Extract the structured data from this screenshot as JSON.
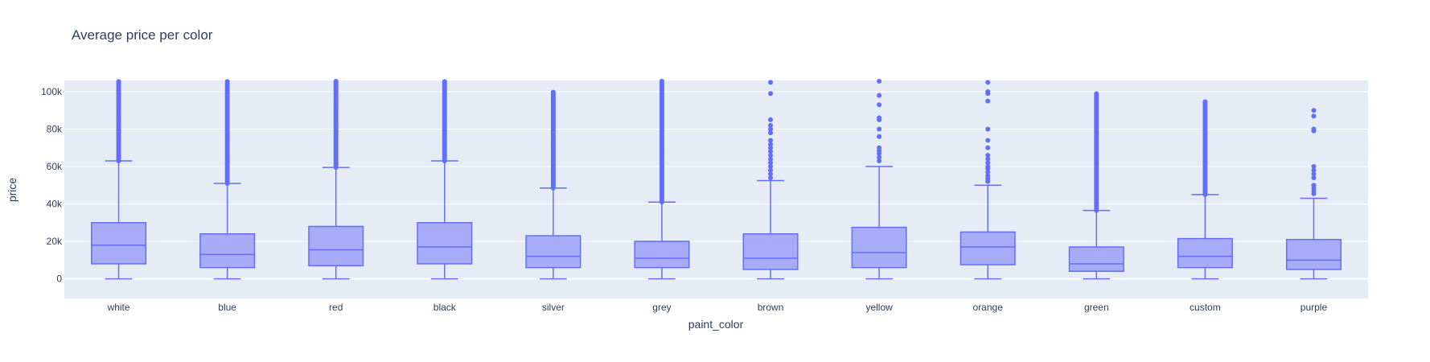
{
  "chart_data": {
    "type": "box",
    "title": "Average price per color",
    "xlabel": "paint_color",
    "ylabel": "price",
    "ylim": [
      -10500,
      106000
    ],
    "yticks": [
      0,
      20000,
      40000,
      60000,
      80000,
      100000
    ],
    "ytick_labels": [
      "0",
      "20k",
      "40k",
      "60k",
      "80k",
      "100k"
    ],
    "grid": true,
    "colors": {
      "plot_bg": "#e5ecf6",
      "box_line": "#636efa",
      "box_fill": "#a4a9f8",
      "grid": "#ffffff",
      "text": "#2a3f5f"
    },
    "categories": [
      "white",
      "blue",
      "red",
      "black",
      "silver",
      "grey",
      "brown",
      "yellow",
      "orange",
      "green",
      "custom",
      "purple"
    ],
    "boxes": [
      {
        "category": "white",
        "min": 0,
        "q1": 8000,
        "median": 18000,
        "q3": 30000,
        "upper_fence": 63000,
        "outliers_range": [
          63000,
          106000
        ]
      },
      {
        "category": "blue",
        "min": 0,
        "q1": 6000,
        "median": 13000,
        "q3": 24000,
        "upper_fence": 51000,
        "outliers_range": [
          51000,
          106000
        ]
      },
      {
        "category": "red",
        "min": 0,
        "q1": 7000,
        "median": 15500,
        "q3": 28000,
        "upper_fence": 59500,
        "outliers_range": [
          59500,
          106000
        ]
      },
      {
        "category": "black",
        "min": 0,
        "q1": 8000,
        "median": 17000,
        "q3": 30000,
        "upper_fence": 63000,
        "outliers_range": [
          63000,
          106000
        ]
      },
      {
        "category": "silver",
        "min": 0,
        "q1": 6000,
        "median": 12000,
        "q3": 23000,
        "upper_fence": 48500,
        "outliers_range": [
          48500,
          100000
        ]
      },
      {
        "category": "grey",
        "min": 0,
        "q1": 6000,
        "median": 11000,
        "q3": 20000,
        "upper_fence": 41000,
        "outliers_range": [
          41000,
          106000
        ]
      },
      {
        "category": "brown",
        "min": 0,
        "q1": 5000,
        "median": 11000,
        "q3": 24000,
        "upper_fence": 52500,
        "outliers": [
          54000,
          56000,
          58000,
          60000,
          62000,
          64000,
          66000,
          68000,
          70000,
          72000,
          74000,
          78000,
          80000,
          82000,
          85000,
          99000,
          105000
        ]
      },
      {
        "category": "yellow",
        "min": 0,
        "q1": 6000,
        "median": 14000,
        "q3": 27500,
        "upper_fence": 60000,
        "outliers": [
          63000,
          65000,
          67000,
          68500,
          70000,
          76000,
          80000,
          85000,
          86000,
          93000,
          98000,
          106000
        ]
      },
      {
        "category": "orange",
        "min": 0,
        "q1": 7500,
        "median": 17000,
        "q3": 25000,
        "upper_fence": 50000,
        "outliers": [
          52000,
          53500,
          55000,
          57000,
          59000,
          60000,
          62000,
          64000,
          66000,
          70000,
          74000,
          80000,
          95000,
          99000,
          100000,
          105000
        ]
      },
      {
        "category": "green",
        "min": 0,
        "q1": 4000,
        "median": 8000,
        "q3": 17000,
        "upper_fence": 36500,
        "outliers_range": [
          36500,
          99000
        ]
      },
      {
        "category": "custom",
        "min": 0,
        "q1": 6000,
        "median": 12000,
        "q3": 21500,
        "upper_fence": 45000,
        "outliers_range": [
          45000,
          95000
        ]
      },
      {
        "category": "purple",
        "min": 0,
        "q1": 5000,
        "median": 10000,
        "q3": 21000,
        "upper_fence": 43000,
        "outliers": [
          45500,
          47000,
          48500,
          50000,
          54000,
          56000,
          58000,
          60000,
          79000,
          80000,
          87000,
          90000
        ]
      }
    ]
  }
}
